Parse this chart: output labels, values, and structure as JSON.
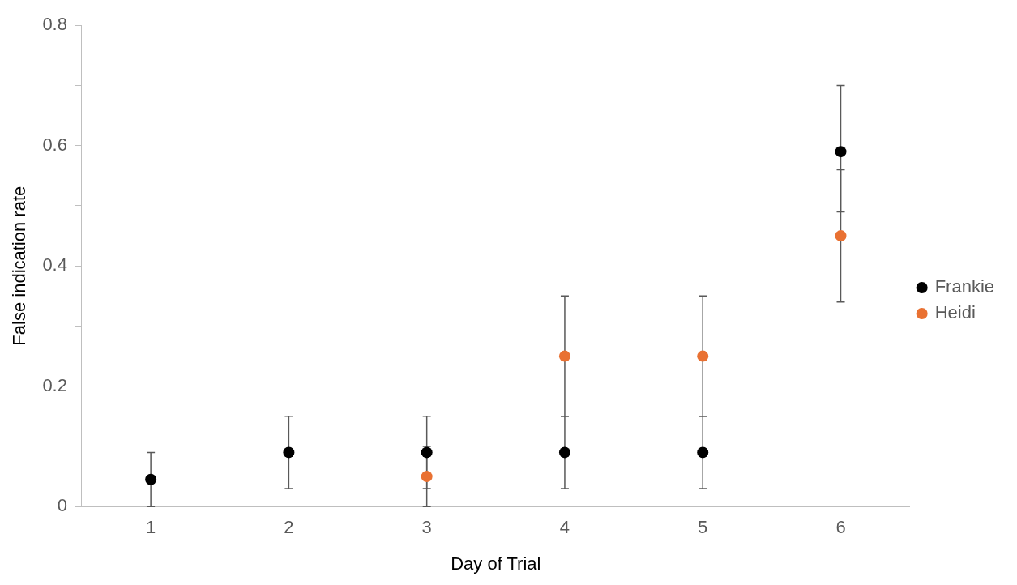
{
  "chart_data": {
    "type": "scatter",
    "xlabel": "Day of Trial",
    "ylabel": "False indication rate",
    "categories": [
      "1",
      "2",
      "3",
      "4",
      "5",
      "6"
    ],
    "series": [
      {
        "name": "Frankie",
        "color": "#000000",
        "values": [
          0.045,
          0.09,
          0.09,
          0.09,
          0.09,
          0.59
        ],
        "errors": [
          [
            0,
            0.09
          ],
          [
            0.03,
            0.15
          ],
          [
            0.03,
            0.15
          ],
          [
            0.03,
            0.15
          ],
          [
            0.03,
            0.15
          ],
          [
            0.49,
            0.7
          ]
        ]
      },
      {
        "name": "Heidi",
        "color": "#e97132",
        "values": [
          null,
          null,
          0.05,
          0.25,
          0.25,
          0.45
        ],
        "errors": [
          null,
          null,
          [
            0,
            0.1
          ],
          [
            0.15,
            0.35
          ],
          [
            0.15,
            0.35
          ],
          [
            0.34,
            0.56
          ]
        ]
      }
    ],
    "ylim": [
      0,
      0.8
    ],
    "yticks": [
      0,
      {
        "value": 0.1,
        "label": null
      },
      0.2,
      {
        "value": 0.3,
        "label": null
      },
      0.4,
      {
        "value": 0.5,
        "label": null
      },
      0.6,
      {
        "value": 0.7,
        "label": null
      },
      0.8
    ],
    "grid": false,
    "legend": "right",
    "marker": "circle"
  }
}
